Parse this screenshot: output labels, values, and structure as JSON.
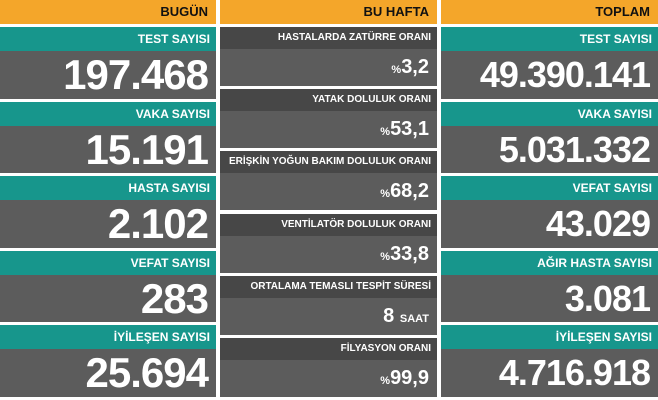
{
  "columns": [
    {
      "header": "BUGÜN",
      "items": [
        {
          "label": "TEST SAYISI",
          "value": "197.468"
        },
        {
          "label": "VAKA SAYISI",
          "value": "15.191"
        },
        {
          "label": "HASTA SAYISI",
          "value": "2.102"
        },
        {
          "label": "VEFAT SAYISI",
          "value": "283"
        },
        {
          "label": "İYİLEŞEN SAYISI",
          "value": "25.694"
        }
      ]
    },
    {
      "header": "BU HAFTA",
      "items": [
        {
          "label": "HASTALARDA ZATÜRRE ORANI",
          "prefix": "%",
          "value": "3,2"
        },
        {
          "label": "YATAK DOLULUK ORANI",
          "prefix": "%",
          "value": "53,1"
        },
        {
          "label": "ERİŞKİN YOĞUN BAKIM DOLULUK ORANI",
          "prefix": "%",
          "value": "68,2"
        },
        {
          "label": "VENTİLATÖR DOLULUK ORANI",
          "prefix": "%",
          "value": "33,8"
        },
        {
          "label": "ORTALAMA TEMASLI TESPİT SÜRESİ",
          "value": "8",
          "suffix": "SAAT"
        },
        {
          "label": "FİLYASYON ORANI",
          "prefix": "%",
          "value": "99,9"
        }
      ]
    },
    {
      "header": "TOPLAM",
      "items": [
        {
          "label": "TEST SAYISI",
          "value": "49.390.141"
        },
        {
          "label": "VAKA SAYISI",
          "value": "5.031.332"
        },
        {
          "label": "VEFAT SAYISI",
          "value": "43.029"
        },
        {
          "label": "AĞIR HASTA SAYISI",
          "value": "3.081"
        },
        {
          "label": "İYİLEŞEN SAYISI",
          "value": "4.716.918"
        }
      ]
    }
  ]
}
